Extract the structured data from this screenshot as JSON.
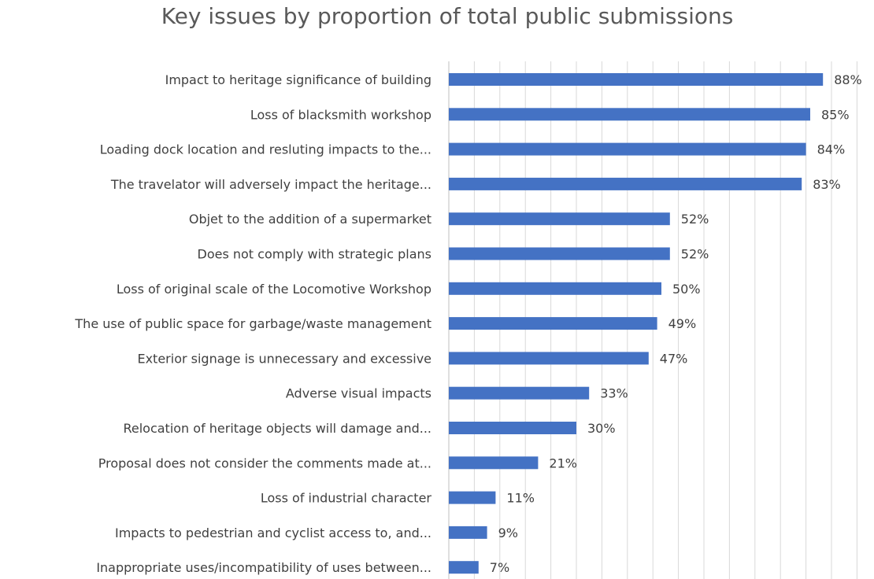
{
  "chart_data": {
    "type": "bar",
    "orientation": "horizontal",
    "title": "Key issues by proportion of total public submissions",
    "xlabel": "",
    "ylabel": "",
    "xlim": [
      0,
      100
    ],
    "grid": "vertical",
    "legend": "none",
    "categories": [
      "Impact to heritage significance of building",
      "Loss of blacksmith workshop",
      "Loading dock location and resluting impacts to the...",
      "The travelator will adversely impact the heritage...",
      "Objet to the addition of a supermarket",
      "Does not comply with strategic plans",
      "Loss of original scale of the Locomotive Workshop",
      "The use of public space for garbage/waste management",
      "Exterior signage is unnecessary and excessive",
      "Adverse visual impacts",
      "Relocation of heritage objects will damage and...",
      "Proposal does not consider the comments made at...",
      "Loss of industrial character",
      "Impacts to pedestrian and cyclist access to, and...",
      "Inappropriate uses/incompatibility of uses between..."
    ],
    "values": [
      88,
      85,
      84,
      83,
      52,
      52,
      50,
      49,
      47,
      33,
      30,
      21,
      11,
      9,
      7
    ],
    "data_labels": [
      "88%",
      "85%",
      "84%",
      "83%",
      "52%",
      "52%",
      "50%",
      "49%",
      "47%",
      "33%",
      "30%",
      "21%",
      "11%",
      "9%",
      "7%"
    ],
    "colors": {
      "bar": "#4472C4",
      "grid": "#d9d9d9",
      "text": "#404040",
      "title": "#595959"
    }
  }
}
